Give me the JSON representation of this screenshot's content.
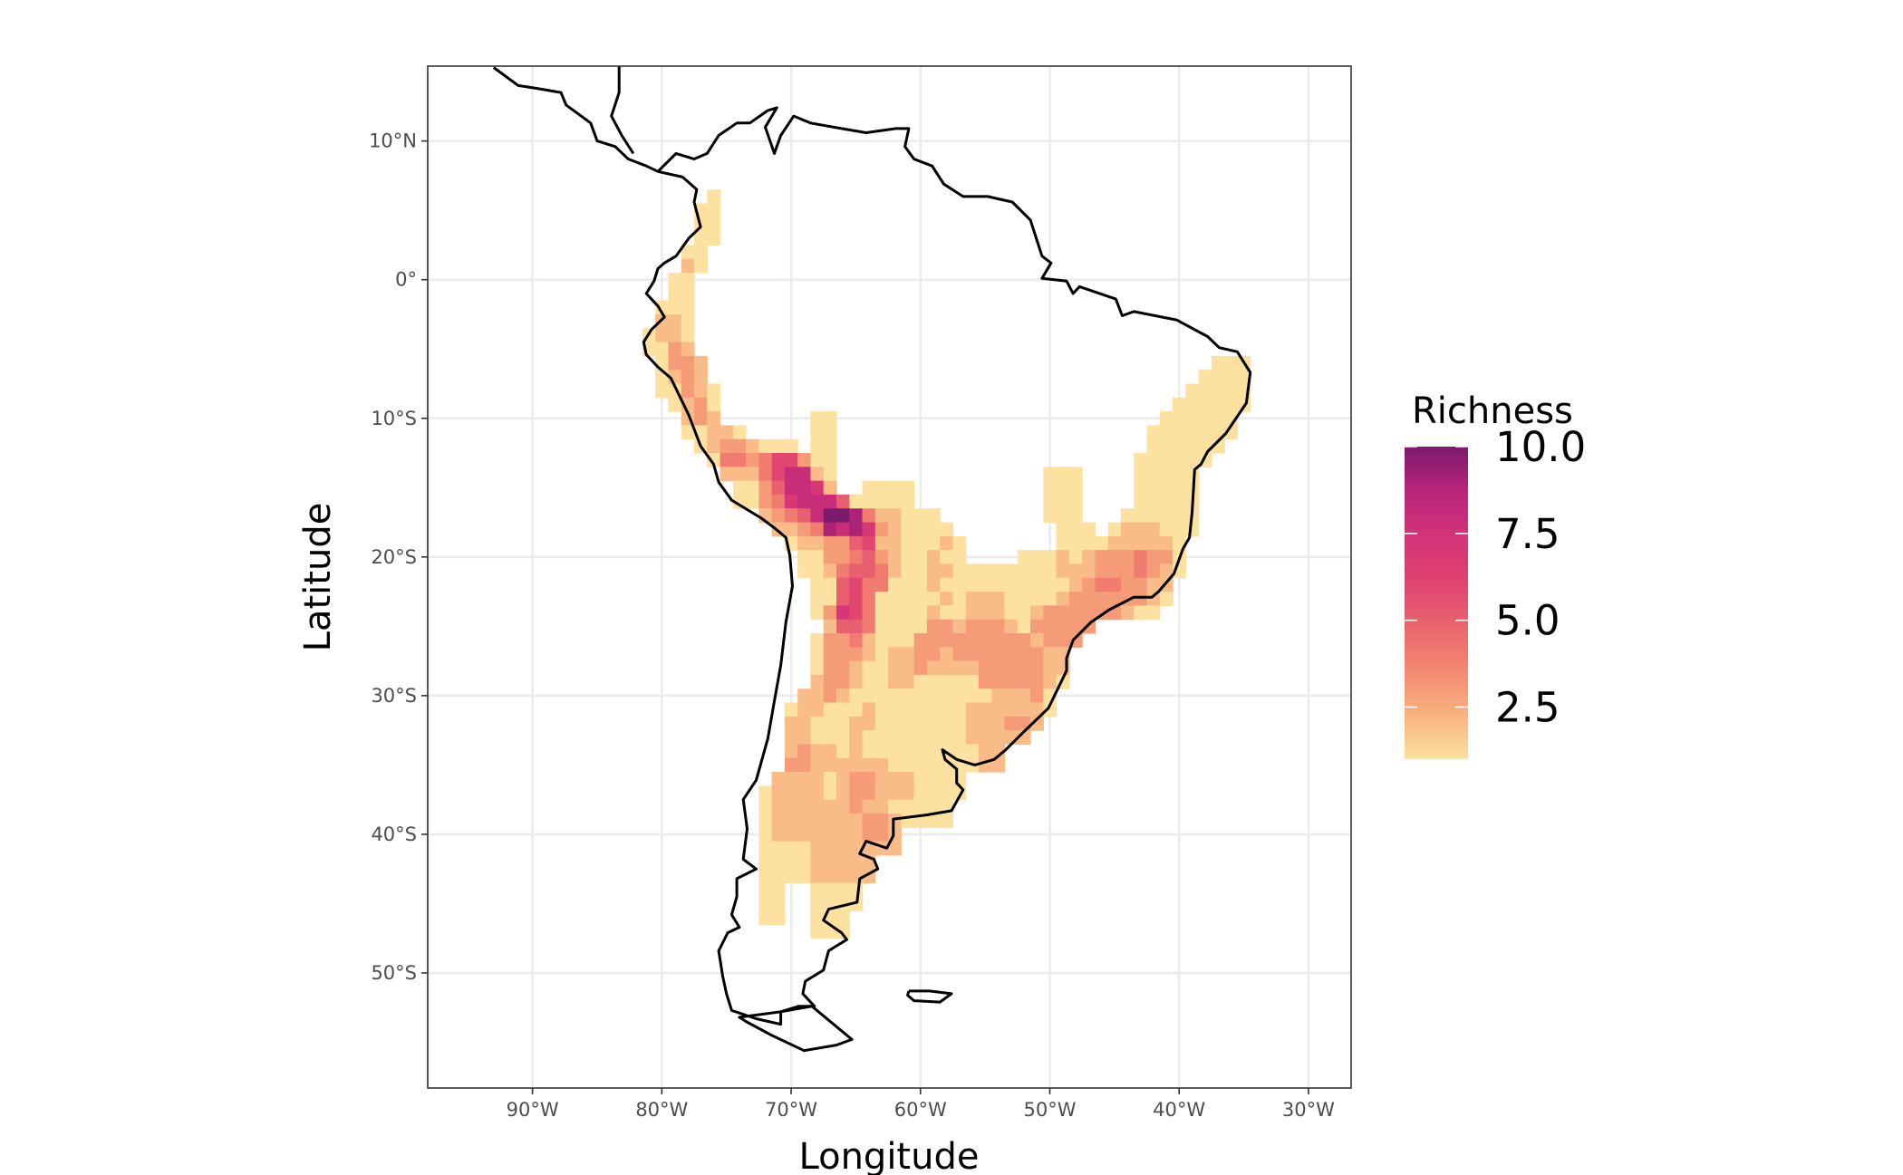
{
  "chart_data": {
    "type": "heatmap",
    "title": "",
    "xlabel": "Longitude",
    "ylabel": "Latitude",
    "xlim": [
      -98.1,
      -26.7
    ],
    "ylim": [
      -58.3,
      15.4
    ],
    "grid": true,
    "x_ticks": {
      "values": [
        -90,
        -80,
        -70,
        -60,
        -50,
        -40,
        -30
      ],
      "labels": [
        "90°W",
        "80°W",
        "70°W",
        "60°W",
        "50°W",
        "40°W",
        "30°W"
      ]
    },
    "y_ticks": {
      "values": [
        10,
        0,
        -10,
        -20,
        -30,
        -40,
        -50
      ],
      "labels": [
        "10°N",
        "0°",
        "10°S",
        "20°S",
        "30°S",
        "40°S",
        "50°S"
      ]
    },
    "legend": {
      "title": "Richness",
      "placement": "right",
      "range": [
        1,
        10
      ],
      "tick_values": [
        10,
        7.5,
        5,
        2.5
      ],
      "tick_labels": [
        "10.0",
        "7.5",
        "5.0",
        "2.5"
      ],
      "color_stops": [
        {
          "value": 1,
          "color": "#FCE1A0"
        },
        {
          "value": 2.5,
          "color": "#F8AA7C"
        },
        {
          "value": 4,
          "color": "#F07C6F"
        },
        {
          "value": 5,
          "color": "#E8606F"
        },
        {
          "value": 6.25,
          "color": "#DF4070"
        },
        {
          "value": 7.5,
          "color": "#D23379"
        },
        {
          "value": 8.75,
          "color": "#B8247A"
        },
        {
          "value": 10,
          "color": "#7A1B6D"
        }
      ]
    },
    "cell_size_deg": 1,
    "cell_rows": [
      {
        "lat": 6,
        "lon_start": -76,
        "values": [
          1
        ]
      },
      {
        "lat": 5,
        "lon_start": -77,
        "values": [
          1,
          1
        ]
      },
      {
        "lat": 4,
        "lon_start": -77,
        "values": [
          1,
          1
        ]
      },
      {
        "lat": 3,
        "lon_start": -77,
        "values": [
          1,
          1
        ]
      },
      {
        "lat": 2,
        "lon_start": -78,
        "values": [
          1,
          1
        ]
      },
      {
        "lat": 1,
        "lon_start": -78,
        "values": [
          2,
          1
        ]
      },
      {
        "lat": 0,
        "lon_start": -79,
        "values": [
          1,
          1
        ]
      },
      {
        "lat": -1,
        "lon_start": -79,
        "values": [
          1,
          1
        ]
      },
      {
        "lat": -2,
        "lon_start": -80,
        "values": [
          1,
          1,
          1
        ]
      },
      {
        "lat": -3,
        "lon_start": -80,
        "values": [
          2,
          2,
          1
        ]
      },
      {
        "lat": -4,
        "lon_start": -81,
        "values": [
          1,
          2,
          2,
          1
        ]
      },
      {
        "lat": -5,
        "lon_start": -81,
        "values": [
          1,
          1,
          3,
          2
        ]
      },
      {
        "lat": -6,
        "lon_start": -80,
        "values": [
          1,
          3,
          3,
          2
        ]
      },
      {
        "lat": -6,
        "lon_start": -37,
        "values": [
          1,
          1,
          1
        ]
      },
      {
        "lat": -7,
        "lon_start": -80,
        "values": [
          1,
          2,
          3,
          2
        ]
      },
      {
        "lat": -7,
        "lon_start": -38,
        "values": [
          1,
          1,
          1,
          1
        ]
      },
      {
        "lat": -8,
        "lon_start": -80,
        "values": [
          1,
          1,
          3,
          2,
          1
        ]
      },
      {
        "lat": -8,
        "lon_start": -39,
        "values": [
          1,
          1,
          1,
          1,
          1
        ]
      },
      {
        "lat": -9,
        "lon_start": -79,
        "values": [
          1,
          2,
          3,
          1
        ]
      },
      {
        "lat": -9,
        "lon_start": -40,
        "values": [
          1,
          1,
          1,
          1,
          1,
          1
        ]
      },
      {
        "lat": -10,
        "lon_start": -78,
        "values": [
          2,
          3,
          2
        ]
      },
      {
        "lat": -10,
        "lon_start": -68,
        "values": [
          1,
          1
        ]
      },
      {
        "lat": -10,
        "lon_start": -41,
        "values": [
          1,
          1,
          1,
          1,
          1,
          1
        ]
      },
      {
        "lat": -11,
        "lon_start": -78,
        "values": [
          1,
          1,
          2,
          2,
          1
        ]
      },
      {
        "lat": -11,
        "lon_start": -68,
        "values": [
          1,
          1
        ]
      },
      {
        "lat": -11,
        "lon_start": -42,
        "values": [
          1,
          1,
          1,
          1,
          1,
          1,
          1
        ]
      },
      {
        "lat": -12,
        "lon_start": -77,
        "values": [
          1,
          2,
          3,
          3,
          2,
          1,
          1,
          1
        ]
      },
      {
        "lat": -12,
        "lon_start": -68,
        "values": [
          1,
          1
        ]
      },
      {
        "lat": -12,
        "lon_start": -42,
        "values": [
          1,
          1,
          1,
          1,
          1,
          1
        ]
      },
      {
        "lat": -13,
        "lon_start": -76,
        "values": [
          1,
          4,
          4,
          3,
          4,
          6,
          6,
          3,
          1,
          1
        ]
      },
      {
        "lat": -13,
        "lon_start": -43,
        "values": [
          1,
          1,
          1,
          1,
          1,
          1
        ]
      },
      {
        "lat": -14,
        "lon_start": -75,
        "values": [
          2,
          2,
          2,
          4,
          6,
          8,
          8,
          2,
          1
        ]
      },
      {
        "lat": -14,
        "lon_start": -50,
        "values": [
          1,
          1,
          1
        ]
      },
      {
        "lat": -14,
        "lon_start": -43,
        "values": [
          1,
          1,
          1,
          1,
          1
        ]
      },
      {
        "lat": -15,
        "lon_start": -74,
        "values": [
          1,
          1,
          3,
          5,
          8,
          8,
          7,
          2
        ]
      },
      {
        "lat": -15,
        "lon_start": -64,
        "values": [
          1,
          1,
          1,
          1
        ]
      },
      {
        "lat": -15,
        "lon_start": -50,
        "values": [
          1,
          1,
          1
        ]
      },
      {
        "lat": -15,
        "lon_start": -43,
        "values": [
          1,
          1,
          1,
          1,
          1
        ]
      },
      {
        "lat": -16,
        "lon_start": -74,
        "values": [
          1,
          1,
          3,
          4,
          7,
          8,
          8,
          8,
          5,
          1,
          1,
          1,
          1,
          1
        ]
      },
      {
        "lat": -16,
        "lon_start": -50,
        "values": [
          1,
          1,
          1
        ]
      },
      {
        "lat": -16,
        "lon_start": -43,
        "values": [
          1,
          1,
          1,
          1,
          1
        ]
      },
      {
        "lat": -17,
        "lon_start": -72,
        "values": [
          2,
          3,
          4,
          5,
          8,
          10,
          10,
          9,
          4,
          2,
          2
        ]
      },
      {
        "lat": -17,
        "lon_start": -61,
        "values": [
          1,
          1,
          1
        ]
      },
      {
        "lat": -17,
        "lon_start": -50,
        "values": [
          1,
          1,
          1
        ]
      },
      {
        "lat": -17,
        "lon_start": -44,
        "values": [
          1,
          1,
          1,
          1,
          1,
          1
        ]
      },
      {
        "lat": -18,
        "lon_start": -71,
        "values": [
          2,
          2,
          3,
          4,
          9,
          8,
          9,
          7,
          3,
          2,
          1,
          1,
          1,
          1
        ]
      },
      {
        "lat": -18,
        "lon_start": -49,
        "values": [
          1,
          1,
          1
        ]
      },
      {
        "lat": -18,
        "lon_start": -45,
        "values": [
          1,
          2,
          2,
          2,
          1,
          1,
          1
        ]
      },
      {
        "lat": -19,
        "lon_start": -70,
        "values": [
          1,
          2,
          2,
          3,
          3,
          5,
          6,
          2,
          2,
          1,
          1,
          1,
          2,
          1
        ]
      },
      {
        "lat": -19,
        "lon_start": -49,
        "values": [
          1,
          1,
          1,
          1,
          2,
          2,
          2,
          2,
          2,
          1
        ]
      },
      {
        "lat": -20,
        "lon_start": -69,
        "values": [
          1,
          1,
          3,
          3,
          4,
          5,
          3,
          2,
          1,
          1,
          2,
          1,
          1
        ]
      },
      {
        "lat": -20,
        "lon_start": -52,
        "values": [
          1,
          1,
          1,
          2,
          1,
          2,
          3,
          3,
          3,
          4,
          3,
          3,
          1
        ]
      },
      {
        "lat": -21,
        "lon_start": -69,
        "values": [
          1,
          1,
          2,
          4,
          5,
          5,
          4,
          2,
          1,
          1,
          2,
          2,
          1,
          1,
          1,
          1,
          1,
          1,
          1,
          1,
          2,
          2,
          2,
          3,
          3,
          3,
          4,
          3,
          2,
          1
        ]
      },
      {
        "lat": -22,
        "lon_start": -68,
        "values": [
          1,
          1,
          5,
          6,
          4,
          4,
          1,
          1,
          1,
          2,
          1,
          1,
          1,
          1,
          1,
          1,
          1,
          1,
          1,
          1,
          2,
          3,
          4,
          4,
          3,
          3,
          2,
          2
        ]
      },
      {
        "lat": -23,
        "lon_start": -68,
        "values": [
          1,
          1,
          5,
          6,
          4,
          1,
          1,
          1,
          1,
          1,
          2,
          1,
          2,
          2,
          2,
          1,
          1,
          1,
          1,
          2,
          3,
          3,
          3,
          3,
          3,
          3,
          2,
          1
        ]
      },
      {
        "lat": -24,
        "lon_start": -68,
        "values": [
          1,
          3,
          7,
          6,
          4,
          1,
          1,
          1,
          1,
          2,
          1,
          1,
          2,
          2,
          2,
          1,
          1,
          2,
          3,
          3,
          3,
          3,
          3,
          3,
          2,
          1,
          1
        ]
      },
      {
        "lat": -25,
        "lon_start": -67,
        "values": [
          2,
          5,
          5,
          4,
          1,
          1,
          1,
          1,
          3,
          3,
          2,
          3,
          3,
          3,
          2,
          1,
          3,
          3,
          3,
          3,
          3
        ]
      },
      {
        "lat": -26,
        "lon_start": -68,
        "values": [
          1,
          3,
          3,
          4,
          2,
          1,
          1,
          1,
          3,
          3,
          3,
          3,
          3,
          3,
          3,
          3,
          3,
          2,
          3,
          3,
          3
        ]
      },
      {
        "lat": -27,
        "lon_start": -68,
        "values": [
          1,
          3,
          3,
          3,
          2,
          1,
          2,
          2,
          3,
          3,
          2,
          3,
          3,
          3,
          3,
          3,
          3,
          3,
          2,
          2
        ]
      },
      {
        "lat": -28,
        "lon_start": -68,
        "values": [
          1,
          3,
          3,
          2,
          1,
          1,
          2,
          2,
          3,
          2,
          2,
          2,
          2,
          3,
          3,
          3,
          3,
          3,
          2,
          2
        ]
      },
      {
        "lat": -29,
        "lon_start": -68,
        "values": [
          2,
          3,
          3,
          2,
          1,
          1,
          2,
          2,
          1,
          1,
          1,
          1,
          1,
          3,
          3,
          3,
          3,
          3,
          2,
          1
        ]
      },
      {
        "lat": -30,
        "lon_start": -69,
        "values": [
          2,
          2,
          3,
          2,
          1,
          1,
          1,
          1,
          1,
          1,
          1,
          1,
          1,
          1,
          1,
          2,
          2,
          2,
          3,
          1
        ]
      },
      {
        "lat": -31,
        "lon_start": -70,
        "values": [
          1,
          2,
          2,
          1,
          1,
          1,
          2,
          1,
          1,
          1,
          1,
          1,
          1,
          1,
          2,
          2,
          2,
          2,
          2,
          2,
          1
        ]
      },
      {
        "lat": -32,
        "lon_start": -70,
        "values": [
          2,
          2,
          1,
          1,
          1,
          2,
          2,
          1,
          1,
          1,
          1,
          1,
          1,
          1,
          2,
          2,
          2,
          3,
          3,
          2
        ]
      },
      {
        "lat": -33,
        "lon_start": -70,
        "values": [
          2,
          2,
          1,
          1,
          1,
          2,
          1,
          1,
          1,
          1,
          1,
          1,
          1,
          1,
          2,
          2,
          2,
          2,
          2
        ]
      },
      {
        "lat": -34,
        "lon_start": -70,
        "values": [
          2,
          3,
          2,
          2,
          1,
          2,
          1,
          1,
          1,
          1,
          1,
          1,
          1,
          1,
          1,
          2,
          2
        ]
      },
      {
        "lat": -35,
        "lon_start": -70,
        "values": [
          3,
          3,
          2,
          2,
          2,
          2,
          2,
          2,
          1,
          1,
          1,
          1,
          1,
          1,
          1,
          2,
          2
        ]
      },
      {
        "lat": -36,
        "lon_start": -71,
        "values": [
          2,
          2,
          2,
          2,
          1,
          2,
          3,
          3,
          2,
          2,
          2,
          1,
          1,
          1,
          1
        ]
      },
      {
        "lat": -37,
        "lon_start": -72,
        "values": [
          1,
          2,
          2,
          2,
          2,
          1,
          2,
          3,
          3,
          2,
          2,
          2,
          1,
          1,
          1,
          1
        ]
      },
      {
        "lat": -38,
        "lon_start": -72,
        "values": [
          1,
          2,
          2,
          2,
          2,
          2,
          2,
          3,
          2,
          2,
          1,
          1,
          1,
          1,
          1
        ]
      },
      {
        "lat": -39,
        "lon_start": -72,
        "values": [
          1,
          2,
          2,
          2,
          2,
          2,
          2,
          2,
          3,
          3,
          2,
          1,
          1,
          1,
          1
        ]
      },
      {
        "lat": -40,
        "lon_start": -72,
        "values": [
          1,
          2,
          2,
          2,
          2,
          2,
          2,
          2,
          3,
          3,
          2
        ]
      },
      {
        "lat": -41,
        "lon_start": -72,
        "values": [
          1,
          1,
          1,
          1,
          2,
          2,
          2,
          2,
          2,
          2,
          2
        ]
      },
      {
        "lat": -42,
        "lon_start": -72,
        "values": [
          1,
          1,
          1,
          1,
          2,
          2,
          2,
          2,
          2
        ]
      },
      {
        "lat": -43,
        "lon_start": -72,
        "values": [
          1,
          1,
          1,
          1,
          2,
          2,
          2,
          2,
          2
        ]
      },
      {
        "lat": -44,
        "lon_start": -72,
        "values": [
          1,
          1
        ]
      },
      {
        "lat": -44,
        "lon_start": -68,
        "values": [
          1,
          1,
          1,
          1
        ]
      },
      {
        "lat": -45,
        "lon_start": -72,
        "values": [
          1,
          1
        ]
      },
      {
        "lat": -45,
        "lon_start": -68,
        "values": [
          1,
          1,
          1,
          1
        ]
      },
      {
        "lat": -46,
        "lon_start": -72,
        "values": [
          1,
          1
        ]
      },
      {
        "lat": -46,
        "lon_start": -68,
        "values": [
          1,
          1,
          1
        ]
      },
      {
        "lat": -47,
        "lon_start": -68,
        "values": [
          1,
          1,
          1
        ]
      }
    ],
    "colors": {
      "grid": "#EBEBEB",
      "panel_border": "#333333",
      "coastline": "#000000",
      "tick_text": "#4D4D4D"
    }
  }
}
